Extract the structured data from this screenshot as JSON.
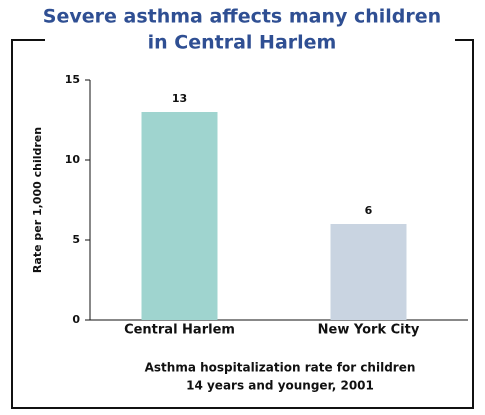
{
  "chart_data": {
    "type": "bar",
    "title": [
      "Severe asthma affects many children",
      "in Central Harlem"
    ],
    "ylabel": "Rate per 1,000 children",
    "xlabel": [
      "Asthma hospitalization rate for children",
      "14 years and younger, 2001"
    ],
    "categories": [
      "Central Harlem",
      "New York City"
    ],
    "values": [
      13,
      6
    ],
    "colors": [
      "#9fd4cf",
      "#c9d4e1"
    ],
    "ylim": [
      0,
      15
    ],
    "yticks": [
      0,
      5,
      10,
      15
    ],
    "grid": false
  }
}
